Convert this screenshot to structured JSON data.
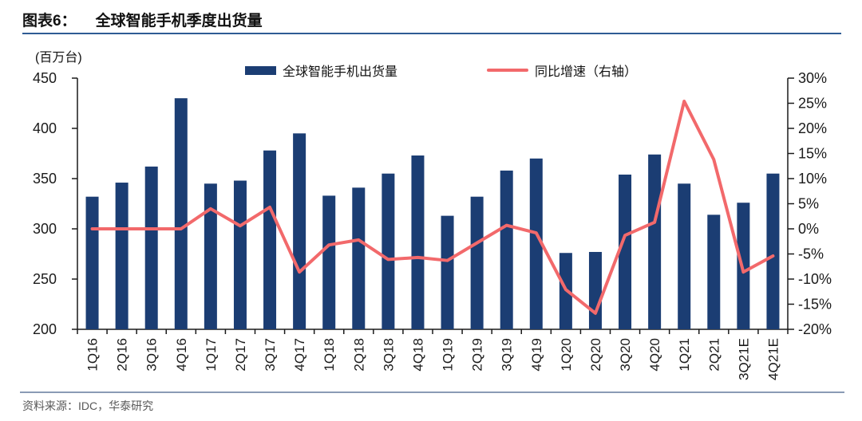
{
  "header": {
    "tag": "图表6：",
    "title": "全球智能手机季度出货量"
  },
  "chart_data": {
    "type": "bar",
    "unit_label": "(百万台)",
    "categories": [
      "1Q16",
      "2Q16",
      "3Q16",
      "4Q16",
      "1Q17",
      "2Q17",
      "3Q17",
      "4Q17",
      "1Q18",
      "2Q18",
      "3Q18",
      "4Q18",
      "1Q19",
      "2Q19",
      "3Q19",
      "4Q19",
      "1Q20",
      "2Q20",
      "3Q20",
      "4Q20",
      "1Q21",
      "2Q21",
      "3Q21E",
      "4Q21E"
    ],
    "series": [
      {
        "name": "全球智能手机出货量",
        "type": "bar",
        "axis": "left",
        "color": "#1B3D73",
        "values": [
          332,
          346,
          362,
          430,
          345,
          348,
          378,
          395,
          333,
          341,
          355,
          373,
          313,
          332,
          358,
          370,
          276,
          277,
          354,
          374,
          345,
          314,
          326,
          355
        ]
      },
      {
        "name": "同比增速（右轴）",
        "type": "line",
        "axis": "right",
        "color": "#F2696B",
        "values": [
          0,
          0,
          0,
          0,
          4.0,
          0.6,
          4.3,
          -8.6,
          -3.2,
          -2.2,
          -6.1,
          -5.7,
          -6.3,
          -2.8,
          0.7,
          -0.8,
          -12.1,
          -16.8,
          -1.3,
          1.3,
          25.4,
          13.8,
          -8.6,
          -5.4
        ]
      }
    ],
    "y_left": {
      "min": 200,
      "max": 450,
      "ticks": [
        450,
        400,
        350,
        300,
        250,
        200
      ],
      "suffix": ""
    },
    "y_right": {
      "min": -20,
      "max": 30,
      "ticks": [
        30,
        25,
        20,
        15,
        10,
        5,
        0,
        -5,
        -10,
        -15,
        -20
      ],
      "suffix": "%"
    },
    "legend_position": "top",
    "grid": false
  },
  "footer": {
    "source": "资料来源：IDC，华泰研究"
  },
  "colors": {
    "bar": "#1B3D73",
    "line": "#F2696B",
    "axis": "#1a1a1a",
    "header_rule": "#2F5B94",
    "footer_rule": "#8A9BB5",
    "source_text": "#595959"
  }
}
